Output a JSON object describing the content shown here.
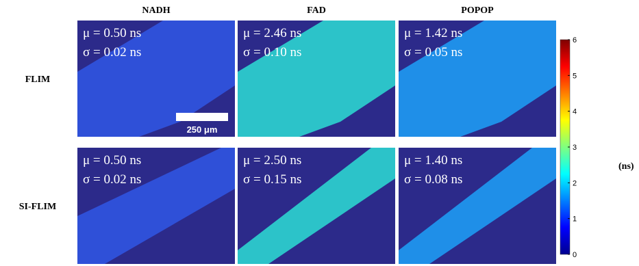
{
  "columns": [
    "NADH",
    "FAD",
    "POPOP"
  ],
  "rows": [
    {
      "label": "FLIM",
      "panels": [
        {
          "mu": "μ = 0.50 ns",
          "sigma": "σ = 0.02 ns"
        },
        {
          "mu": "μ = 2.46 ns",
          "sigma": "σ = 0.10 ns"
        },
        {
          "mu": "μ = 1.42 ns",
          "sigma": "σ = 0.05 ns"
        }
      ]
    },
    {
      "label": "SI-FLIM",
      "panels": [
        {
          "mu": "μ = 0.50 ns",
          "sigma": "σ = 0.02 ns"
        },
        {
          "mu": "μ = 2.50 ns",
          "sigma": "σ = 0.15 ns"
        },
        {
          "mu": "μ = 1.40 ns",
          "sigma": "σ = 0.08 ns"
        }
      ]
    }
  ],
  "scale_bar": "250 μm",
  "colorbar": {
    "ticks": [
      "0",
      "1",
      "2",
      "3",
      "4",
      "5",
      "6"
    ],
    "unit": "(ns)"
  }
}
